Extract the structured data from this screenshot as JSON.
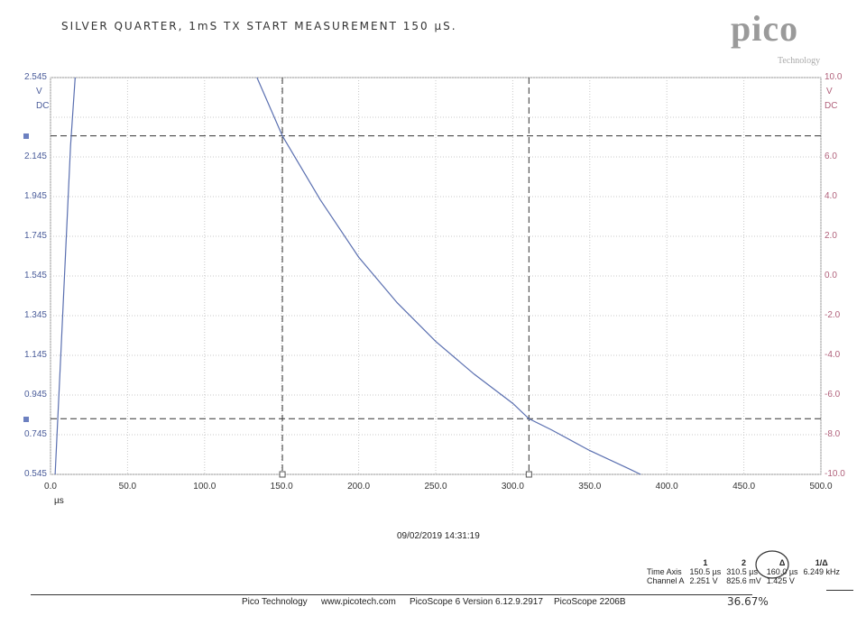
{
  "header": {
    "handwritten_title": "SILVER QUARTER, 1mS TX   START MEASUREMENT   150 µS.",
    "logo_text": "pico",
    "logo_sub": "Technology"
  },
  "chart_data": {
    "type": "line",
    "xlim": [
      0,
      500
    ],
    "x_ticks": [
      "0.0",
      "50.0",
      "100.0",
      "150.0",
      "200.0",
      "250.0",
      "300.0",
      "350.0",
      "400.0",
      "450.0",
      "500.0"
    ],
    "xlabel": "µs",
    "ylim_left": [
      0.545,
      2.545
    ],
    "y_ticks_left": [
      "2.545",
      "2.145",
      "1.945",
      "1.745",
      "1.545",
      "1.345",
      "1.145",
      "0.945",
      "0.745",
      "0.545"
    ],
    "ylabel_left": "V",
    "ylabel_left_coupling": "DC",
    "ylim_right": [
      -10,
      10
    ],
    "y_ticks_right": [
      "10.0",
      "6.0",
      "4.0",
      "2.0",
      "0.0",
      "-2.0",
      "-4.0",
      "-6.0",
      "-8.0",
      "-10.0"
    ],
    "ylabel_right": "V",
    "ylabel_right_coupling": "DC",
    "grid": true,
    "series": [
      {
        "color": "#5a6fb0",
        "x": [
          3,
          7,
          10,
          13,
          16
        ],
        "y": [
          0.545,
          1.2,
          1.7,
          2.2,
          2.545
        ]
      },
      {
        "color": "#5a6fb0",
        "x": [
          134,
          150.5,
          175,
          200,
          225,
          250,
          275,
          300,
          310.5,
          325,
          350,
          375,
          383
        ],
        "y": [
          2.545,
          2.251,
          1.93,
          1.64,
          1.41,
          1.215,
          1.05,
          0.903,
          0.8256,
          0.77,
          0.665,
          0.575,
          0.545
        ]
      }
    ],
    "cursors": {
      "vertical_x": [
        150.5,
        310.5
      ],
      "horizontal_y": [
        2.251,
        0.8256
      ]
    }
  },
  "timestamp": "09/02/2019 14:31:19",
  "measurements": {
    "col_headers": [
      "",
      "1",
      "2",
      "Δ",
      "1/Δ"
    ],
    "rows": [
      {
        "label": "Time Axis",
        "c1": "150.5 µs",
        "c2": "310.5 µs",
        "delta": "160.0 µs",
        "inv": "6.249 kHz"
      },
      {
        "label": "Channel A",
        "c1": "2.251 V",
        "c2": "825.6 mV",
        "delta": "1.425 V",
        "inv": ""
      }
    ]
  },
  "handwritten_note": "36.67%",
  "footer": {
    "company": "Pico Technology",
    "website": "www.picotech.com",
    "version": "PicoScope 6 Version 6.12.9.2917",
    "device": "PicoScope 2206B"
  }
}
